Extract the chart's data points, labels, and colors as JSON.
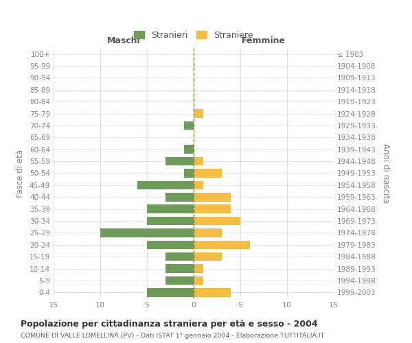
{
  "age_groups": [
    "100+",
    "95-99",
    "90-94",
    "85-89",
    "80-84",
    "75-79",
    "70-74",
    "65-69",
    "60-64",
    "55-59",
    "50-54",
    "45-49",
    "40-44",
    "35-39",
    "30-34",
    "25-29",
    "20-24",
    "15-19",
    "10-14",
    "5-9",
    "0-4"
  ],
  "birth_years": [
    "≤ 1903",
    "1904-1908",
    "1909-1913",
    "1914-1918",
    "1919-1923",
    "1924-1928",
    "1929-1933",
    "1934-1938",
    "1939-1943",
    "1944-1948",
    "1949-1953",
    "1954-1958",
    "1959-1963",
    "1964-1968",
    "1969-1973",
    "1974-1978",
    "1979-1983",
    "1984-1988",
    "1989-1993",
    "1994-1998",
    "1999-2003"
  ],
  "males": [
    0,
    0,
    0,
    0,
    0,
    0,
    1,
    0,
    1,
    3,
    1,
    6,
    3,
    5,
    5,
    10,
    5,
    3,
    3,
    3,
    5
  ],
  "females": [
    0,
    0,
    0,
    0,
    0,
    1,
    0,
    0,
    0,
    1,
    3,
    1,
    4,
    4,
    5,
    3,
    6,
    3,
    1,
    1,
    4
  ],
  "male_color": "#6d9b5a",
  "female_color": "#f5bc42",
  "male_label": "Stranieri",
  "female_label": "Straniere",
  "title": "Popolazione per cittadinanza straniera per età e sesso - 2004",
  "subtitle": "COMUNE DI VALLE LOMELLINA (PV) - Dati ISTAT 1° gennaio 2004 - Elaborazione TUTTITALIA.IT",
  "xlabel_left": "Maschi",
  "xlabel_right": "Femmine",
  "ylabel_left": "Fasce di età",
  "ylabel_right": "Anni di nascita",
  "xlim": 15,
  "background_color": "#ffffff",
  "grid_color": "#cccccc",
  "tick_color": "#888888",
  "center_line_color": "#808040"
}
